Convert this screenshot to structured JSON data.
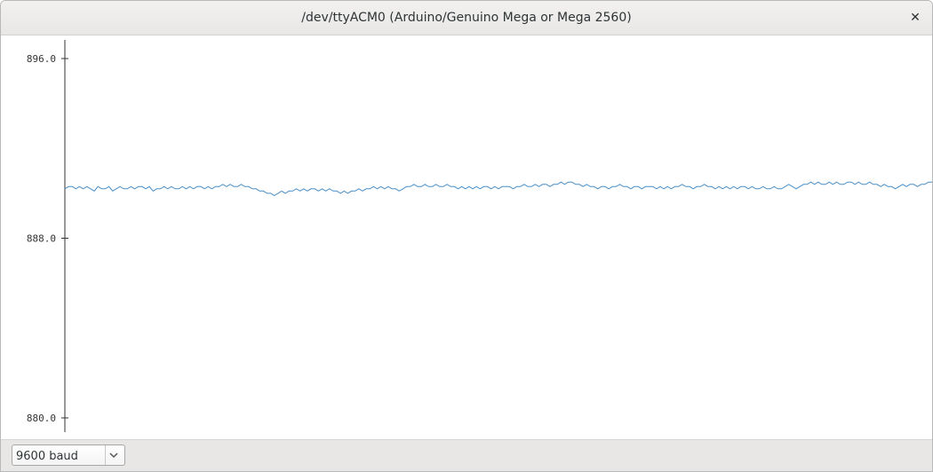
{
  "window": {
    "title": "/dev/ttyACM0 (Arduino/Genuino Mega or Mega 2560)",
    "close_icon": "close-icon"
  },
  "plotter": {
    "line_color": "#4a8fc7",
    "axis_color": "#333333"
  },
  "chart_data": {
    "type": "line",
    "title": "",
    "xlabel": "",
    "ylabel": "",
    "ylim": [
      879.5,
      896.5
    ],
    "yticks": [
      896.0,
      888.0,
      880.0
    ],
    "ytick_labels": [
      "896.0",
      "888.0",
      "880.0"
    ],
    "grid": false,
    "legend": "none",
    "series": [
      {
        "values": [
          890.2,
          890.3,
          890.3,
          890.2,
          890.3,
          890.2,
          890.3,
          890.2,
          890.1,
          890.3,
          890.2,
          890.2,
          890.3,
          890.1,
          890.2,
          890.3,
          890.2,
          890.2,
          890.3,
          890.2,
          890.3,
          890.3,
          890.2,
          890.3,
          890.1,
          890.2,
          890.2,
          890.3,
          890.2,
          890.3,
          890.2,
          890.2,
          890.3,
          890.2,
          890.3,
          890.2,
          890.3,
          890.3,
          890.2,
          890.3,
          890.2,
          890.3,
          890.3,
          890.4,
          890.3,
          890.4,
          890.3,
          890.3,
          890.4,
          890.3,
          890.3,
          890.2,
          890.2,
          890.1,
          890.1,
          890.0,
          890.0,
          889.9,
          890.0,
          890.1,
          890.0,
          890.1,
          890.1,
          890.2,
          890.1,
          890.2,
          890.1,
          890.2,
          890.2,
          890.1,
          890.2,
          890.1,
          890.2,
          890.1,
          890.1,
          890.0,
          890.1,
          890.0,
          890.1,
          890.1,
          890.2,
          890.1,
          890.2,
          890.2,
          890.3,
          890.2,
          890.3,
          890.2,
          890.3,
          890.2,
          890.2,
          890.1,
          890.2,
          890.3,
          890.3,
          890.4,
          890.3,
          890.3,
          890.4,
          890.3,
          890.3,
          890.4,
          890.3,
          890.3,
          890.4,
          890.3,
          890.3,
          890.2,
          890.3,
          890.2,
          890.3,
          890.2,
          890.3,
          890.2,
          890.3,
          890.3,
          890.2,
          890.3,
          890.2,
          890.3,
          890.3,
          890.3,
          890.2,
          890.3,
          890.3,
          890.4,
          890.3,
          890.3,
          890.4,
          890.3,
          890.4,
          890.4,
          890.3,
          890.4,
          890.4,
          890.5,
          890.4,
          890.5,
          890.5,
          890.4,
          890.4,
          890.3,
          890.4,
          890.3,
          890.3,
          890.2,
          890.3,
          890.3,
          890.2,
          890.3,
          890.3,
          890.4,
          890.3,
          890.3,
          890.2,
          890.3,
          890.3,
          890.2,
          890.3,
          890.3,
          890.3,
          890.2,
          890.3,
          890.2,
          890.3,
          890.2,
          890.3,
          890.3,
          890.4,
          890.3,
          890.3,
          890.2,
          890.3,
          890.3,
          890.4,
          890.3,
          890.3,
          890.2,
          890.3,
          890.2,
          890.3,
          890.2,
          890.3,
          890.2,
          890.3,
          890.3,
          890.2,
          890.3,
          890.2,
          890.2,
          890.3,
          890.2,
          890.2,
          890.3,
          890.2,
          890.2,
          890.3,
          890.4,
          890.3,
          890.2,
          890.3,
          890.4,
          890.4,
          890.5,
          890.4,
          890.5,
          890.4,
          890.4,
          890.5,
          890.4,
          890.5,
          890.4,
          890.4,
          890.5,
          890.5,
          890.4,
          890.5,
          890.4,
          890.4,
          890.5,
          890.4,
          890.4,
          890.3,
          890.4,
          890.3,
          890.3,
          890.2,
          890.3,
          890.4,
          890.3,
          890.4,
          890.4,
          890.3,
          890.4,
          890.4,
          890.5,
          890.5
        ]
      }
    ]
  },
  "baud": {
    "selected": "9600 baud"
  }
}
